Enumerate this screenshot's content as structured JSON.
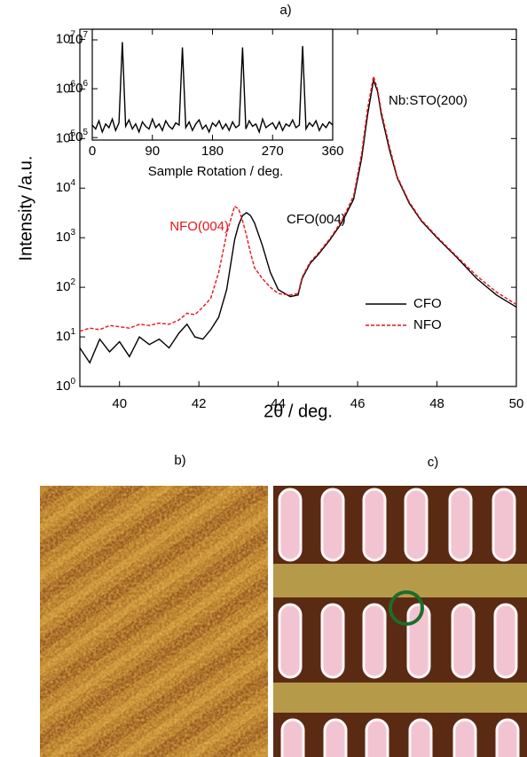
{
  "chart_data": [
    {
      "type": "line",
      "title": "a)",
      "x_label": "2θ / deg.",
      "y_label": "Intensity /a.u.",
      "x": [
        39,
        39.25,
        39.5,
        39.75,
        40,
        40.25,
        40.5,
        40.75,
        41,
        41.25,
        41.5,
        41.7,
        41.9,
        42.1,
        42.3,
        42.5,
        42.7,
        42.9,
        43.0,
        43.1,
        43.2,
        43.3,
        43.4,
        43.6,
        43.8,
        44.0,
        44.3,
        44.5,
        44.6,
        44.8,
        45.0,
        45.3,
        45.6,
        45.9,
        46.1,
        46.25,
        46.4,
        46.5,
        46.6,
        46.8,
        47.0,
        47.3,
        47.6,
        48.0,
        48.5,
        49.0,
        49.5,
        50.0
      ],
      "series": [
        {
          "name": "CFO",
          "color": "#000000",
          "line_style": "solid",
          "values": [
            6,
            3,
            9,
            5,
            8,
            4,
            10,
            7,
            9,
            6,
            12,
            18,
            10,
            9,
            14,
            25,
            90,
            900,
            1800,
            2800,
            3200,
            2800,
            2000,
            700,
            200,
            90,
            65,
            70,
            150,
            300,
            450,
            900,
            2000,
            6000,
            40000,
            300000,
            1500000,
            900000,
            300000,
            60000,
            16000,
            5000,
            2200,
            1000,
            400,
            150,
            70,
            40
          ]
        },
        {
          "name": "NFO",
          "color": "#e8141c",
          "line_style": "dashed",
          "values": [
            13,
            15,
            14,
            17,
            16,
            15,
            18,
            17,
            19,
            18,
            22,
            30,
            28,
            40,
            60,
            200,
            1200,
            4300,
            3800,
            2200,
            1100,
            500,
            250,
            150,
            100,
            75,
            70,
            75,
            160,
            320,
            480,
            950,
            2200,
            7000,
            50000,
            400000,
            1800000,
            1000000,
            350000,
            70000,
            17000,
            5300,
            2300,
            1050,
            420,
            170,
            80,
            45
          ]
        }
      ],
      "log_y": true,
      "xlim": [
        39,
        50
      ],
      "ylim": [
        1,
        16000000
      ],
      "xticks": [
        40,
        42,
        44,
        46,
        48,
        50
      ],
      "yticks": [
        {
          "value": 1,
          "label": "10^0"
        },
        {
          "value": 10,
          "label": "10^1"
        },
        {
          "value": 100,
          "label": "10^2"
        },
        {
          "value": 1000,
          "label": "10^3"
        },
        {
          "value": 10000,
          "label": "10^4"
        },
        {
          "value": 100000,
          "label": "10^5"
        },
        {
          "value": 1000000,
          "label": "10^6"
        },
        {
          "value": 10000000,
          "label": "10^7"
        }
      ],
      "legend": "lower right",
      "annotations": [
        {
          "text": "Nb:STO(200)",
          "color": "#000000"
        },
        {
          "text": "CFO(004)",
          "color": "#000000"
        },
        {
          "text": "NFO(004)",
          "color": "#e8141c"
        }
      ]
    },
    {
      "type": "line",
      "x_label": "Sample Rotation / deg.",
      "x": [
        0,
        5,
        10,
        15,
        20,
        25,
        30,
        35,
        40,
        45,
        50,
        55,
        60,
        65,
        70,
        75,
        80,
        85,
        90,
        95,
        100,
        105,
        110,
        115,
        120,
        125,
        130,
        135,
        140,
        145,
        150,
        155,
        160,
        165,
        170,
        175,
        180,
        185,
        190,
        195,
        200,
        205,
        210,
        215,
        220,
        225,
        230,
        235,
        240,
        245,
        250,
        255,
        260,
        265,
        270,
        275,
        280,
        285,
        290,
        295,
        300,
        305,
        310,
        315,
        320,
        325,
        330,
        335,
        340,
        345,
        350,
        355,
        360
      ],
      "series": [
        {
          "color": "#000000",
          "values": [
            180000,
            150000,
            220000,
            130000,
            190000,
            160000,
            240000,
            140000,
            200000,
            9000000,
            170000,
            230000,
            150000,
            190000,
            130000,
            210000,
            170000,
            150000,
            240000,
            160000,
            190000,
            140000,
            220000,
            170000,
            150000,
            200000,
            180000,
            7000000,
            160000,
            210000,
            140000,
            190000,
            230000,
            150000,
            180000,
            130000,
            200000,
            170000,
            220000,
            150000,
            190000,
            140000,
            210000,
            160000,
            180000,
            7000000,
            150000,
            220000,
            170000,
            190000,
            130000,
            240000,
            160000,
            180000,
            200000,
            150000,
            210000,
            140000,
            190000,
            170000,
            230000,
            160000,
            180000,
            7500000,
            150000,
            200000,
            170000,
            220000,
            140000,
            190000,
            160000,
            210000,
            180000
          ]
        }
      ],
      "log_y": true,
      "xlim": [
        0,
        360
      ],
      "ylim": [
        89000,
        16500000
      ],
      "xticks": [
        0,
        90,
        180,
        270,
        360
      ],
      "yticks": [
        {
          "value": 100000,
          "label": "10^5"
        },
        {
          "value": 1000000,
          "label": "10^6"
        },
        {
          "value": 10000000,
          "label": "10^7"
        }
      ]
    }
  ],
  "panels": [
    {
      "label": "b)"
    },
    {
      "label": "c)"
    }
  ]
}
